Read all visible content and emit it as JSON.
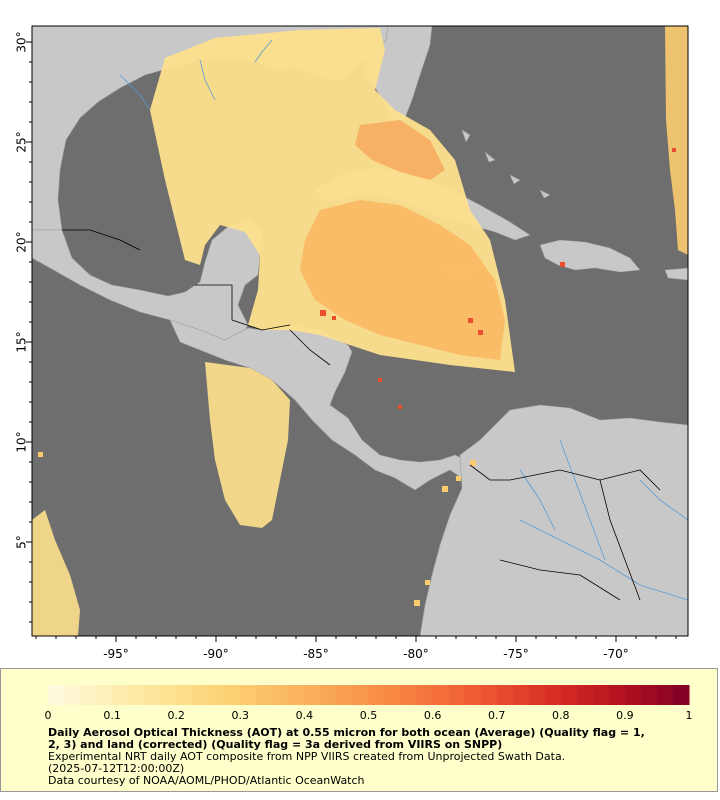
{
  "map": {
    "lon_ticks": [
      "-95°",
      "-90°",
      "-85°",
      "-80°",
      "-75°",
      "-70°"
    ],
    "lon_values": [
      -95,
      -90,
      -85,
      -80,
      -75,
      -70
    ],
    "lat_ticks": [
      "30°",
      "25°",
      "20°",
      "15°",
      "10°",
      "5°"
    ],
    "lat_values": [
      30,
      25,
      20,
      15,
      10,
      5
    ],
    "lon_range": [
      -99.2,
      -66.4
    ],
    "lat_range": [
      0.3,
      30.8
    ],
    "colors": {
      "ocean": "#6e6e6e",
      "land": "#c8c8c8",
      "rivers": "#5b9bd5",
      "borders": "#000000",
      "frame": "#000000"
    },
    "icon": "map-with-aot-overlay"
  },
  "colorbar": {
    "labels": [
      "0",
      "0.1",
      "0.2",
      "0.3",
      "0.4",
      "0.5",
      "0.6",
      "0.7",
      "0.8",
      "0.9",
      "1"
    ],
    "values": [
      0,
      0.1,
      0.2,
      0.3,
      0.4,
      0.5,
      0.6,
      0.7,
      0.8,
      0.9,
      1
    ],
    "colormap": [
      "#fffbe3",
      "#ffeeb4",
      "#fde08d",
      "#fccc6f",
      "#fbb25b",
      "#f9944a",
      "#f5733b",
      "#e94f2f",
      "#d42a24",
      "#b0101f",
      "#800026"
    ]
  },
  "caption": {
    "title_line1": "Daily Aerosol Optical Thickness (AOT) at 0.55 micron for both ocean (Average) (Quality flag = 1,",
    "title_line2": "2, 3) and land (corrected) (Quality flag = 3a derived from VIIRS on SNPP)",
    "line3": "Experimental NRT daily AOT composite from NPP VIIRS created from Unprojected Swath Data.",
    "line4": "(2025-07-12T12:00:00Z)",
    "line5": "Data courtesy of NOAA/AOML/PHOD/Atlantic OceanWatch"
  }
}
